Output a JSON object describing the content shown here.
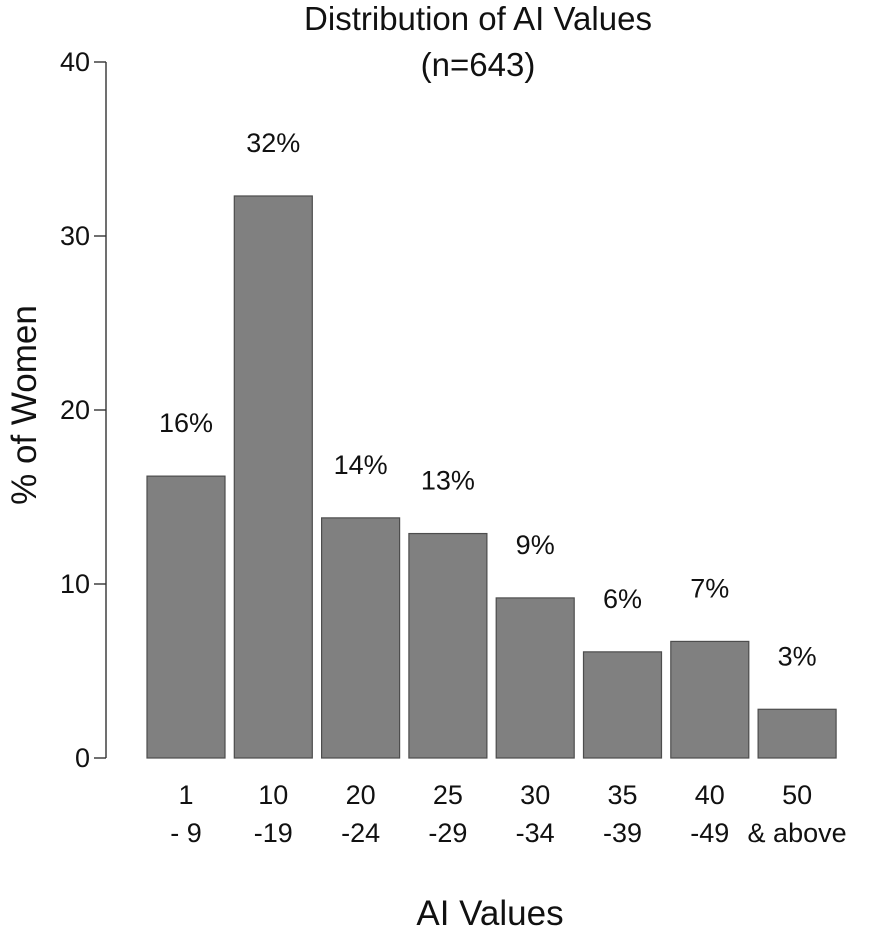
{
  "chart_data": {
    "type": "bar",
    "title": "Distribution of  AI Values",
    "subtitle": "(n=643)",
    "xlabel": "AI Values",
    "ylabel": "% of Women",
    "ylim": [
      0,
      40
    ],
    "yticks": [
      0,
      10,
      20,
      30,
      40
    ],
    "grid": false,
    "categories": [
      [
        "1",
        "- 9"
      ],
      [
        "10",
        "-19"
      ],
      [
        "20",
        "-24"
      ],
      [
        "25",
        "-29"
      ],
      [
        "30",
        "-34"
      ],
      [
        "35",
        "-39"
      ],
      [
        "40",
        "-49"
      ],
      [
        "50",
        "& above"
      ]
    ],
    "values": [
      16.2,
      32.3,
      13.8,
      12.9,
      9.2,
      6.1,
      6.7,
      2.8
    ],
    "data_labels": [
      "16%",
      "32%",
      "14%",
      "13%",
      "9%",
      "6%",
      "7%",
      "3%"
    ],
    "bar_color": "#808080",
    "bar_edge_color": "#4d4d4d"
  }
}
